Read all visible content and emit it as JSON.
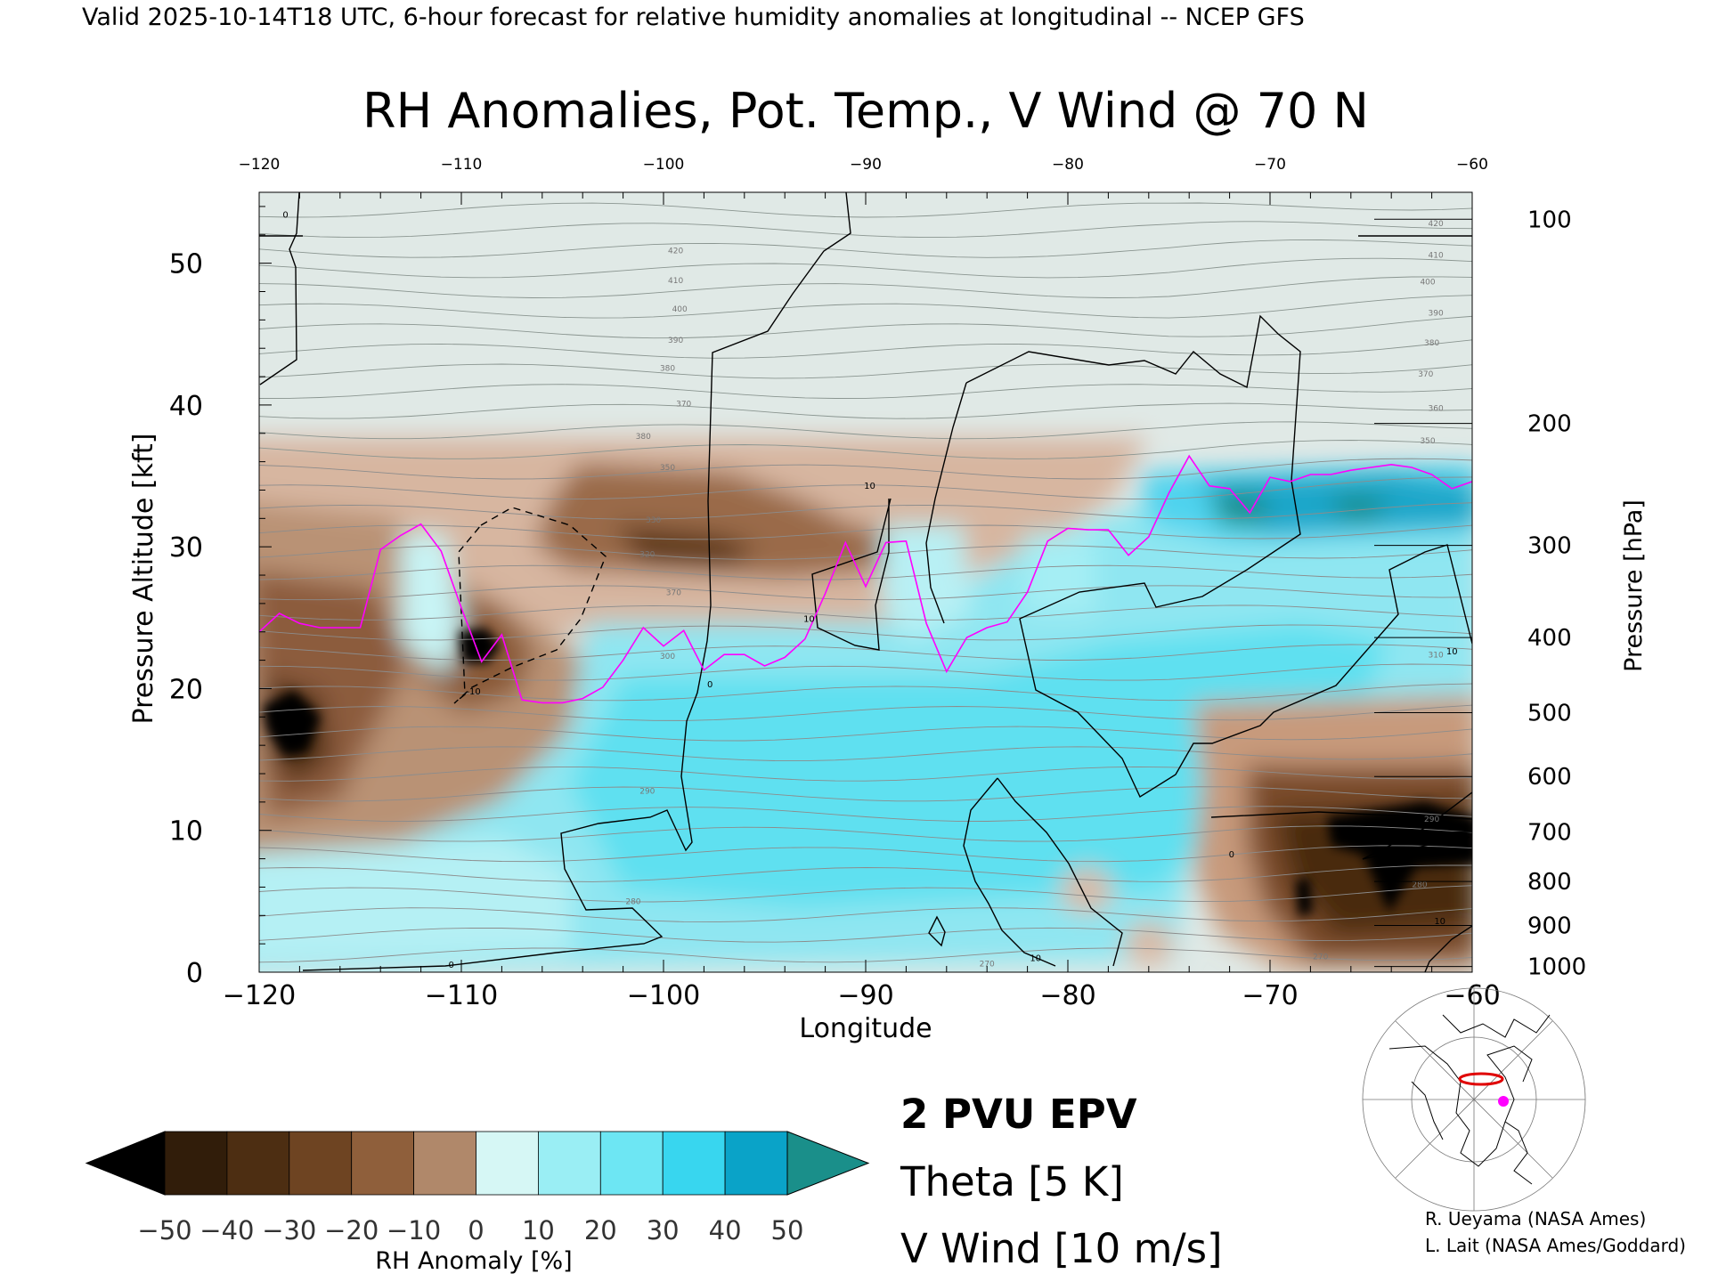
{
  "header": "Valid 2025-10-14T18 UTC, 6-hour forecast for relative humidity anomalies at longitudinal -- NCEP GFS",
  "chart_data": {
    "type": "heatmap",
    "title": "RH Anomalies, Pot. Temp., V Wind @ 70 N",
    "xlabel": "Longitude",
    "ylabel": "Pressure Altitude [kft]",
    "y2label": "Pressure [hPa]",
    "xlim": [
      -120,
      -60
    ],
    "ylim": [
      0,
      55
    ],
    "x_ticks": [
      -120,
      -110,
      -100,
      -90,
      -80,
      -70,
      -60
    ],
    "y_ticks": [
      0,
      10,
      20,
      30,
      40,
      50
    ],
    "pressure_ticks": [
      {
        "label": "100",
        "kft": 53.1
      },
      {
        "label": "200",
        "kft": 38.7
      },
      {
        "label": "300",
        "kft": 30.1
      },
      {
        "label": "400",
        "kft": 23.6
      },
      {
        "label": "500",
        "kft": 18.3
      },
      {
        "label": "600",
        "kft": 13.8
      },
      {
        "label": "700",
        "kft": 9.9
      },
      {
        "label": "800",
        "kft": 6.4
      },
      {
        "label": "900",
        "kft": 3.3
      },
      {
        "label": "1000",
        "kft": 0.4
      }
    ],
    "theta_labels": [
      {
        "value": "420",
        "x": -99.4,
        "y": 50.7
      },
      {
        "value": "410",
        "x": -99.4,
        "y": 48.6
      },
      {
        "value": "400",
        "x": -99.2,
        "y": 46.6
      },
      {
        "value": "390",
        "x": -99.4,
        "y": 44.4
      },
      {
        "value": "380",
        "x": -99.8,
        "y": 42.4
      },
      {
        "value": "370",
        "x": -99.0,
        "y": 39.9
      },
      {
        "value": "380",
        "x": -101.0,
        "y": 37.6
      },
      {
        "value": "350",
        "x": -99.8,
        "y": 35.4
      },
      {
        "value": "330",
        "x": -100.5,
        "y": 31.7
      },
      {
        "value": "320",
        "x": -100.8,
        "y": 29.3
      },
      {
        "value": "370",
        "x": -99.5,
        "y": 26.6
      },
      {
        "value": "300",
        "x": -99.8,
        "y": 22.1
      },
      {
        "value": "290",
        "x": -100.8,
        "y": 12.6
      },
      {
        "value": "280",
        "x": -101.5,
        "y": 4.8
      },
      {
        "value": "270",
        "x": -84.0,
        "y": 0.4
      },
      {
        "value": "420",
        "x": -61.8,
        "y": 52.6
      },
      {
        "value": "410",
        "x": -61.8,
        "y": 50.4
      },
      {
        "value": "400",
        "x": -62.2,
        "y": 48.5
      },
      {
        "value": "390",
        "x": -61.8,
        "y": 46.3
      },
      {
        "value": "380",
        "x": -62.0,
        "y": 44.2
      },
      {
        "value": "370",
        "x": -62.3,
        "y": 42.0
      },
      {
        "value": "360",
        "x": -61.8,
        "y": 39.6
      },
      {
        "value": "350",
        "x": -62.2,
        "y": 37.3
      },
      {
        "value": "310",
        "x": -61.8,
        "y": 22.2
      },
      {
        "value": "290",
        "x": -62.0,
        "y": 10.6
      },
      {
        "value": "280",
        "x": -62.6,
        "y": 6.0
      },
      {
        "value": "270",
        "x": -67.5,
        "y": 0.9
      }
    ],
    "wind_labels": [
      {
        "value": "0",
        "x": -118.7,
        "y": 53.2
      },
      {
        "value": "0",
        "x": -97.7,
        "y": 20.1
      },
      {
        "value": "0",
        "x": -110.5,
        "y": 0.3
      },
      {
        "value": "0",
        "x": -71.9,
        "y": 8.1
      },
      {
        "value": "10",
        "x": -89.8,
        "y": 34.1
      },
      {
        "value": "10",
        "x": -92.8,
        "y": 24.7
      },
      {
        "value": "-10",
        "x": -109.4,
        "y": 19.6
      },
      {
        "value": "10",
        "x": -81.6,
        "y": 0.8
      },
      {
        "value": "10",
        "x": -61.0,
        "y": 22.4
      },
      {
        "value": "10",
        "x": -61.6,
        "y": 3.4
      }
    ],
    "pv_2pvu_line": {
      "x": [
        -120,
        -119,
        -118,
        -117,
        -116,
        -115,
        -114,
        -113,
        -112,
        -111,
        -110,
        -109,
        -108,
        -107,
        -106,
        -105,
        -104,
        -103,
        -102,
        -101,
        -100,
        -99,
        -98,
        -97,
        -96,
        -95,
        -94,
        -93,
        -92,
        -91,
        -90,
        -89,
        -88,
        -87,
        -86,
        -85,
        -84,
        -83,
        -82,
        -81,
        -80,
        -79,
        -78,
        -77,
        -76,
        -75,
        -74,
        -73,
        -72,
        -71,
        -70,
        -69,
        -68,
        -67,
        -66,
        -65,
        -64,
        -63,
        -62,
        -61,
        -60
      ],
      "y": [
        24,
        25.3,
        24.6,
        24.3,
        24.3,
        24.3,
        29.8,
        30.8,
        31.6,
        29.7,
        25.7,
        21.9,
        23.8,
        19.2,
        19.0,
        19.0,
        19.3,
        20.1,
        22.0,
        24.3,
        23.0,
        24.1,
        21.3,
        22.4,
        22.4,
        21.6,
        22.2,
        23.5,
        26.7,
        30.3,
        27.2,
        30.3,
        30.4,
        24.6,
        21.2,
        23.6,
        24.3,
        24.7,
        26.8,
        30.4,
        31.3,
        31.2,
        31.2,
        29.4,
        30.7,
        33.8,
        36.4,
        34.3,
        34.1,
        32.4,
        34.9,
        34.6,
        35.1,
        35.1,
        35.4,
        35.6,
        35.8,
        35.6,
        35.1,
        34.1,
        34.6
      ]
    },
    "colorbar": {
      "label": "RH Anomaly [%]",
      "ticks": [
        "-50",
        "-40",
        "-30",
        "-20",
        "-10",
        "0",
        "10",
        "20",
        "30",
        "40",
        "50"
      ],
      "colors": [
        "#311d0a",
        "#4d2e12",
        "#6e4422",
        "#8f5f3b",
        "#b0886a",
        "#dfc9b8",
        "#d6f7f5",
        "#9aeef4",
        "#6de6f3",
        "#38d6ef",
        "#0aa3c8"
      ],
      "under_color": "#000000",
      "over_color": "#1a8f8a"
    },
    "legend": [
      {
        "label": "2 PVU EPV",
        "color": "#ff00ff"
      },
      {
        "label": "Theta [5 K]",
        "color": "#a0a0a0"
      },
      {
        "label": "V Wind [10 m/s]",
        "color": "#000000"
      }
    ]
  },
  "credits": [
    "R. Ueyama (NASA Ames)",
    "L. Lait (NASA Ames/Goddard)"
  ]
}
